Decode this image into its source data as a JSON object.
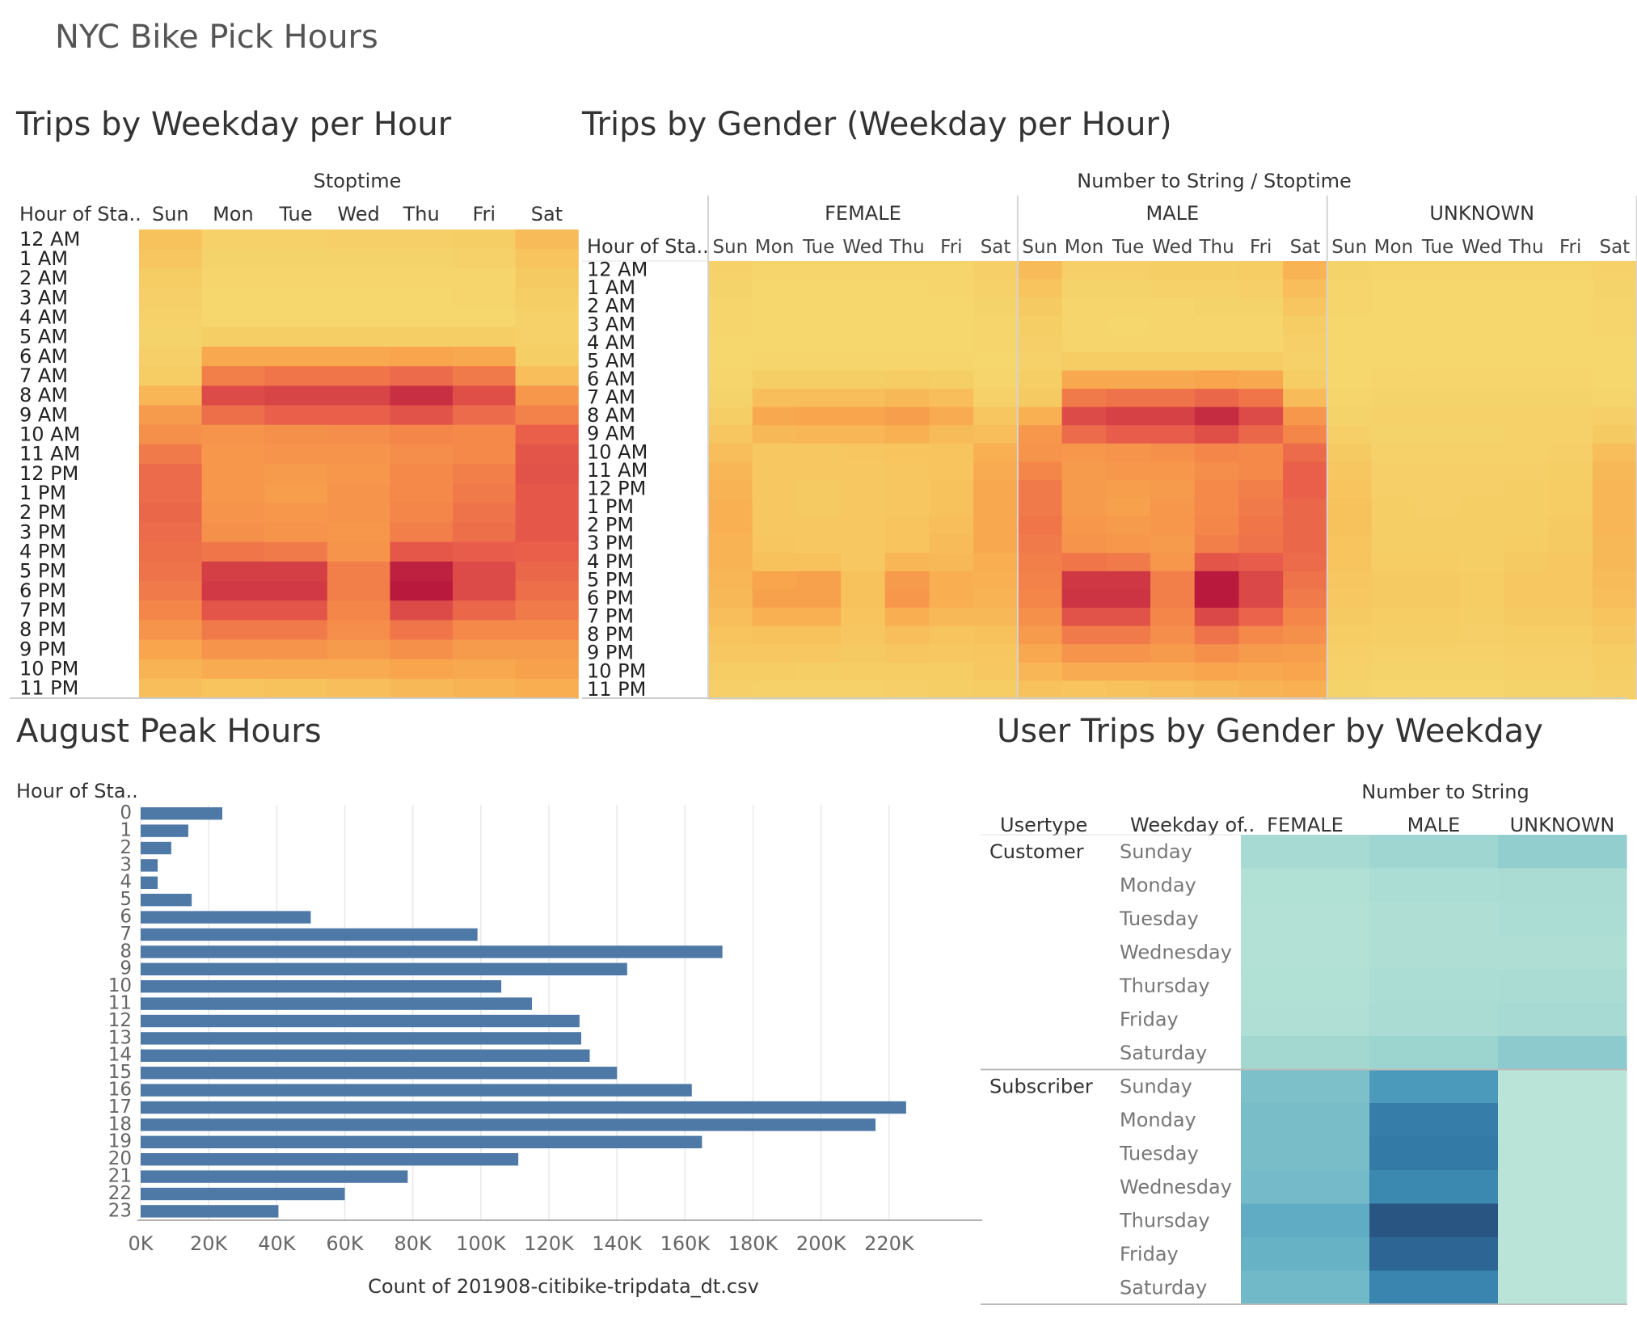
{
  "dashboard": {
    "title": "NYC Bike Pick Hours"
  },
  "hours_labels": [
    "12 AM",
    "1 AM",
    "2 AM",
    "3 AM",
    "4 AM",
    "5 AM",
    "6 AM",
    "7 AM",
    "8 AM",
    "9 AM",
    "10 AM",
    "11 AM",
    "12 PM",
    "1 PM",
    "2 PM",
    "3 PM",
    "4 PM",
    "5 PM",
    "6 PM",
    "7 PM",
    "8 PM",
    "9 PM",
    "10 PM",
    "11 PM"
  ],
  "days_short": [
    "Sun",
    "Mon",
    "Tue",
    "Wed",
    "Thu",
    "Fri",
    "Sat"
  ],
  "colors": {
    "heat_scale": [
      "#f5d76e",
      "#f7c45e",
      "#f8a84e",
      "#f4864a",
      "#e95f4a",
      "#d43e45",
      "#b8193d"
    ],
    "teal_scale": [
      "#b9e4d7",
      "#a6dad2",
      "#86c6cc",
      "#5ba9c3",
      "#3c8bb3",
      "#2f6f9f",
      "#28527f"
    ],
    "bar": "#4e79a7",
    "grid": "#e8e8e8",
    "divider": "#d4d4d4"
  },
  "chart_data": [
    {
      "type": "heatmap",
      "title": "Trips by Weekday per Hour",
      "column_header": "Stoptime",
      "row_header": "Hour of Sta..",
      "rows": [
        "12 AM",
        "1 AM",
        "2 AM",
        "3 AM",
        "4 AM",
        "5 AM",
        "6 AM",
        "7 AM",
        "8 AM",
        "9 AM",
        "10 AM",
        "11 AM",
        "12 PM",
        "1 PM",
        "2 PM",
        "3 PM",
        "4 PM",
        "5 PM",
        "6 PM",
        "7 PM",
        "8 PM",
        "9 PM",
        "10 PM",
        "11 PM"
      ],
      "columns": [
        "Sun",
        "Mon",
        "Tue",
        "Wed",
        "Thu",
        "Fri",
        "Sat"
      ],
      "values": [
        [
          1.1,
          0.3,
          0.3,
          0.4,
          0.4,
          0.5,
          1.3
        ],
        [
          0.9,
          0.2,
          0.2,
          0.2,
          0.2,
          0.3,
          1.0
        ],
        [
          0.6,
          0.1,
          0.1,
          0.1,
          0.1,
          0.1,
          0.7
        ],
        [
          0.4,
          0.0,
          0.0,
          0.0,
          0.0,
          0.1,
          0.5
        ],
        [
          0.3,
          0.0,
          0.0,
          0.0,
          0.0,
          0.0,
          0.3
        ],
        [
          0.2,
          0.5,
          0.5,
          0.5,
          0.5,
          0.5,
          0.3
        ],
        [
          0.4,
          2.0,
          2.0,
          2.0,
          2.1,
          2.0,
          0.5
        ],
        [
          0.6,
          3.2,
          3.4,
          3.4,
          3.7,
          3.3,
          1.2
        ],
        [
          1.5,
          4.6,
          4.8,
          4.8,
          5.4,
          4.5,
          2.5
        ],
        [
          2.4,
          3.6,
          4.0,
          4.0,
          4.4,
          3.7,
          3.1
        ],
        [
          2.7,
          2.6,
          2.7,
          2.8,
          3.0,
          2.9,
          4.0
        ],
        [
          3.3,
          2.5,
          2.6,
          2.6,
          2.8,
          2.9,
          4.3
        ],
        [
          3.7,
          2.5,
          2.4,
          2.5,
          2.9,
          3.2,
          4.4
        ],
        [
          3.7,
          2.5,
          2.3,
          2.6,
          2.9,
          3.3,
          4.2
        ],
        [
          3.8,
          2.6,
          2.5,
          2.6,
          3.0,
          3.5,
          4.2
        ],
        [
          3.7,
          2.7,
          2.6,
          2.5,
          3.2,
          3.6,
          4.2
        ],
        [
          3.6,
          3.4,
          3.3,
          2.6,
          4.2,
          4.1,
          4.0
        ],
        [
          3.5,
          5.0,
          5.0,
          3.2,
          5.8,
          4.6,
          3.8
        ],
        [
          3.3,
          5.1,
          5.1,
          3.2,
          6.0,
          4.6,
          3.6
        ],
        [
          3.0,
          4.3,
          4.3,
          3.0,
          4.6,
          3.8,
          3.3
        ],
        [
          2.6,
          3.3,
          3.3,
          2.8,
          3.4,
          2.9,
          2.9
        ],
        [
          2.1,
          2.6,
          2.6,
          2.4,
          2.7,
          2.4,
          2.4
        ],
        [
          1.6,
          1.9,
          1.9,
          1.9,
          2.1,
          2.0,
          2.2
        ],
        [
          1.2,
          1.0,
          1.1,
          1.2,
          1.4,
          1.6,
          1.8
        ]
      ]
    },
    {
      "type": "heatmap",
      "title": "Trips by Gender (Weekday per Hour)",
      "column_header": "Number to String / Stoptime",
      "row_header": "Hour of Sta..",
      "groups": [
        "FEMALE",
        "MALE",
        "UNKNOWN"
      ],
      "rows": [
        "12 AM",
        "1 AM",
        "2 AM",
        "3 AM",
        "4 AM",
        "5 AM",
        "6 AM",
        "7 AM",
        "8 AM",
        "9 AM",
        "10 AM",
        "11 AM",
        "12 PM",
        "1 PM",
        "2 PM",
        "3 PM",
        "4 PM",
        "5 PM",
        "6 PM",
        "7 PM",
        "8 PM",
        "9 PM",
        "10 PM",
        "11 PM"
      ],
      "columns": [
        "Sun",
        "Mon",
        "Tue",
        "Wed",
        "Thu",
        "Fri",
        "Sat"
      ],
      "values": {
        "FEMALE": [
          [
            0.3,
            0.1,
            0.1,
            0.1,
            0.1,
            0.1,
            0.4
          ],
          [
            0.2,
            0.0,
            0.0,
            0.0,
            0.0,
            0.1,
            0.3
          ],
          [
            0.1,
            0.0,
            0.0,
            0.0,
            0.0,
            0.0,
            0.2
          ],
          [
            0.1,
            0.0,
            0.0,
            0.0,
            0.0,
            0.0,
            0.1
          ],
          [
            0.0,
            0.0,
            0.0,
            0.0,
            0.0,
            0.0,
            0.1
          ],
          [
            0.0,
            0.1,
            0.1,
            0.1,
            0.1,
            0.1,
            0.0
          ],
          [
            0.1,
            0.5,
            0.5,
            0.5,
            0.6,
            0.5,
            0.1
          ],
          [
            0.2,
            1.2,
            1.2,
            1.2,
            1.4,
            1.2,
            0.3
          ],
          [
            0.5,
            2.0,
            2.1,
            2.1,
            2.3,
            1.9,
            0.9
          ],
          [
            0.9,
            1.4,
            1.5,
            1.5,
            1.7,
            1.3,
            1.2
          ],
          [
            1.2,
            0.8,
            0.8,
            0.9,
            1.0,
            1.0,
            1.7
          ],
          [
            1.5,
            0.8,
            0.8,
            0.8,
            0.9,
            1.0,
            1.9
          ],
          [
            1.6,
            0.8,
            0.7,
            0.8,
            0.9,
            1.1,
            2.0
          ],
          [
            1.7,
            0.8,
            0.7,
            0.8,
            0.9,
            1.1,
            2.0
          ],
          [
            1.7,
            0.8,
            0.8,
            0.8,
            1.0,
            1.2,
            2.0
          ],
          [
            1.6,
            0.9,
            0.8,
            0.8,
            1.0,
            1.3,
            2.0
          ],
          [
            1.6,
            1.1,
            1.1,
            0.8,
            1.5,
            1.4,
            1.8
          ],
          [
            1.5,
            2.1,
            2.2,
            1.1,
            2.4,
            1.8,
            1.7
          ],
          [
            1.4,
            2.2,
            2.2,
            1.1,
            2.5,
            1.8,
            1.6
          ],
          [
            1.2,
            1.7,
            1.7,
            1.0,
            1.8,
            1.4,
            1.4
          ],
          [
            1.0,
            1.1,
            1.1,
            0.9,
            1.2,
            1.0,
            1.1
          ],
          [
            0.8,
            0.8,
            0.8,
            0.7,
            0.9,
            0.8,
            0.9
          ],
          [
            0.6,
            0.6,
            0.5,
            0.6,
            0.6,
            0.6,
            0.8
          ],
          [
            0.4,
            0.3,
            0.3,
            0.3,
            0.4,
            0.5,
            0.6
          ]
        ],
        "MALE": [
          [
            1.3,
            0.4,
            0.4,
            0.5,
            0.5,
            0.6,
            1.6
          ],
          [
            1.0,
            0.2,
            0.2,
            0.3,
            0.3,
            0.4,
            1.2
          ],
          [
            0.7,
            0.1,
            0.1,
            0.1,
            0.2,
            0.2,
            0.9
          ],
          [
            0.5,
            0.1,
            0.0,
            0.1,
            0.1,
            0.1,
            0.6
          ],
          [
            0.4,
            0.1,
            0.1,
            0.1,
            0.1,
            0.1,
            0.4
          ],
          [
            0.3,
            0.6,
            0.6,
            0.6,
            0.6,
            0.6,
            0.3
          ],
          [
            0.5,
            2.0,
            2.0,
            2.0,
            2.1,
            2.0,
            0.6
          ],
          [
            0.7,
            3.3,
            3.5,
            3.5,
            3.8,
            3.4,
            1.3
          ],
          [
            1.7,
            4.6,
            4.9,
            4.9,
            5.5,
            4.6,
            2.5
          ],
          [
            2.5,
            3.7,
            4.1,
            4.1,
            4.5,
            3.8,
            3.0
          ],
          [
            2.6,
            2.5,
            2.6,
            2.7,
            3.0,
            2.9,
            3.7
          ],
          [
            3.0,
            2.4,
            2.5,
            2.5,
            2.8,
            2.9,
            4.0
          ],
          [
            3.3,
            2.4,
            2.3,
            2.4,
            2.9,
            3.2,
            4.0
          ],
          [
            3.3,
            2.4,
            2.2,
            2.5,
            2.9,
            3.3,
            3.8
          ],
          [
            3.4,
            2.5,
            2.4,
            2.5,
            3.0,
            3.4,
            3.8
          ],
          [
            3.3,
            2.6,
            2.5,
            2.4,
            3.2,
            3.5,
            3.8
          ],
          [
            3.2,
            3.4,
            3.3,
            2.5,
            4.3,
            4.1,
            3.7
          ],
          [
            3.1,
            5.2,
            5.2,
            3.2,
            6.0,
            4.7,
            3.5
          ],
          [
            3.0,
            5.3,
            5.3,
            3.2,
            6.2,
            4.7,
            3.3
          ],
          [
            2.7,
            4.4,
            4.4,
            3.0,
            4.7,
            3.9,
            3.0
          ],
          [
            2.4,
            3.3,
            3.3,
            2.8,
            3.5,
            2.9,
            2.7
          ],
          [
            2.0,
            2.6,
            2.6,
            2.4,
            2.7,
            2.4,
            2.3
          ],
          [
            1.5,
            1.9,
            1.9,
            1.9,
            2.1,
            2.0,
            2.1
          ],
          [
            1.1,
            1.0,
            1.1,
            1.2,
            1.4,
            1.6,
            1.7
          ]
        ],
        "UNKNOWN": [
          [
            0.2,
            0.1,
            0.1,
            0.1,
            0.1,
            0.1,
            0.3
          ],
          [
            0.1,
            0.0,
            0.0,
            0.0,
            0.0,
            0.0,
            0.2
          ],
          [
            0.1,
            0.0,
            0.0,
            0.0,
            0.0,
            0.0,
            0.1
          ],
          [
            0.0,
            0.0,
            0.0,
            0.0,
            0.0,
            0.0,
            0.1
          ],
          [
            0.0,
            0.0,
            0.0,
            0.0,
            0.0,
            0.0,
            0.0
          ],
          [
            0.0,
            0.0,
            0.0,
            0.0,
            0.0,
            0.0,
            0.0
          ],
          [
            0.0,
            0.1,
            0.1,
            0.1,
            0.1,
            0.1,
            0.0
          ],
          [
            0.1,
            0.2,
            0.2,
            0.2,
            0.2,
            0.2,
            0.1
          ],
          [
            0.2,
            0.3,
            0.3,
            0.3,
            0.3,
            0.3,
            0.4
          ],
          [
            0.4,
            0.2,
            0.2,
            0.2,
            0.3,
            0.3,
            0.7
          ],
          [
            0.7,
            0.3,
            0.3,
            0.3,
            0.3,
            0.4,
            1.2
          ],
          [
            0.9,
            0.4,
            0.4,
            0.4,
            0.4,
            0.5,
            1.4
          ],
          [
            1.0,
            0.4,
            0.4,
            0.4,
            0.5,
            0.6,
            1.5
          ],
          [
            1.1,
            0.5,
            0.4,
            0.5,
            0.5,
            0.6,
            1.5
          ],
          [
            1.1,
            0.5,
            0.5,
            0.5,
            0.5,
            0.7,
            1.5
          ],
          [
            1.0,
            0.5,
            0.5,
            0.5,
            0.6,
            0.7,
            1.4
          ],
          [
            1.0,
            0.6,
            0.6,
            0.5,
            0.7,
            0.8,
            1.4
          ],
          [
            0.9,
            0.7,
            0.7,
            0.6,
            0.8,
            0.8,
            1.3
          ],
          [
            0.8,
            0.7,
            0.7,
            0.6,
            0.8,
            0.8,
            1.2
          ],
          [
            0.7,
            0.6,
            0.6,
            0.5,
            0.7,
            0.7,
            1.0
          ],
          [
            0.6,
            0.5,
            0.5,
            0.4,
            0.5,
            0.5,
            0.8
          ],
          [
            0.4,
            0.3,
            0.3,
            0.3,
            0.4,
            0.4,
            0.6
          ],
          [
            0.3,
            0.2,
            0.2,
            0.2,
            0.3,
            0.3,
            0.5
          ],
          [
            0.2,
            0.1,
            0.1,
            0.1,
            0.2,
            0.2,
            0.4
          ]
        ]
      }
    },
    {
      "type": "bar",
      "orientation": "horizontal",
      "title": "August Peak Hours",
      "ylabel": "Hour of Sta..",
      "xlabel": "Count of 201908-citibike-tripdata_dt.csv",
      "categories": [
        "0",
        "1",
        "2",
        "3",
        "4",
        "5",
        "6",
        "7",
        "8",
        "9",
        "10",
        "11",
        "12",
        "13",
        "14",
        "15",
        "16",
        "17",
        "18",
        "19",
        "20",
        "21",
        "22",
        "23"
      ],
      "values": [
        24000,
        14000,
        9000,
        5000,
        5000,
        15000,
        50000,
        99000,
        171000,
        143000,
        106000,
        115000,
        129000,
        129500,
        132000,
        140000,
        162000,
        225000,
        216000,
        165000,
        111000,
        78500,
        60000,
        40500
      ],
      "xticks": [
        "0K",
        "20K",
        "40K",
        "60K",
        "80K",
        "100K",
        "120K",
        "140K",
        "160K",
        "180K",
        "200K",
        "220K"
      ],
      "xlim": [
        0,
        235000
      ],
      "grid": true
    },
    {
      "type": "heatmap",
      "title": "User Trips by Gender by Weekday",
      "column_header": "Number to String",
      "row_headers": [
        "Usertype",
        "Weekday of.."
      ],
      "columns": [
        "FEMALE",
        "MALE",
        "UNKNOWN"
      ],
      "groups": [
        {
          "name": "Customer",
          "rows": [
            "Sunday",
            "Monday",
            "Tuesday",
            "Wednesday",
            "Thursday",
            "Friday",
            "Saturday"
          ],
          "values": [
            [
              1.0,
              1.2,
              1.6
            ],
            [
              0.4,
              0.7,
              0.8
            ],
            [
              0.3,
              0.6,
              0.7
            ],
            [
              0.3,
              0.6,
              0.6
            ],
            [
              0.4,
              0.7,
              0.8
            ],
            [
              0.5,
              0.8,
              1.0
            ],
            [
              1.1,
              1.3,
              1.8
            ]
          ]
        },
        {
          "name": "Subscriber",
          "rows": [
            "Sunday",
            "Monday",
            "Tuesday",
            "Wednesday",
            "Thursday",
            "Friday",
            "Saturday"
          ],
          "values": [
            [
              2.2,
              3.5,
              0.0
            ],
            [
              2.3,
              4.5,
              0.0
            ],
            [
              2.3,
              4.6,
              0.0
            ],
            [
              2.4,
              4.1,
              0.0
            ],
            [
              2.9,
              5.9,
              0.0
            ],
            [
              2.7,
              5.3,
              0.0
            ],
            [
              2.5,
              4.2,
              0.0
            ]
          ]
        }
      ]
    }
  ]
}
